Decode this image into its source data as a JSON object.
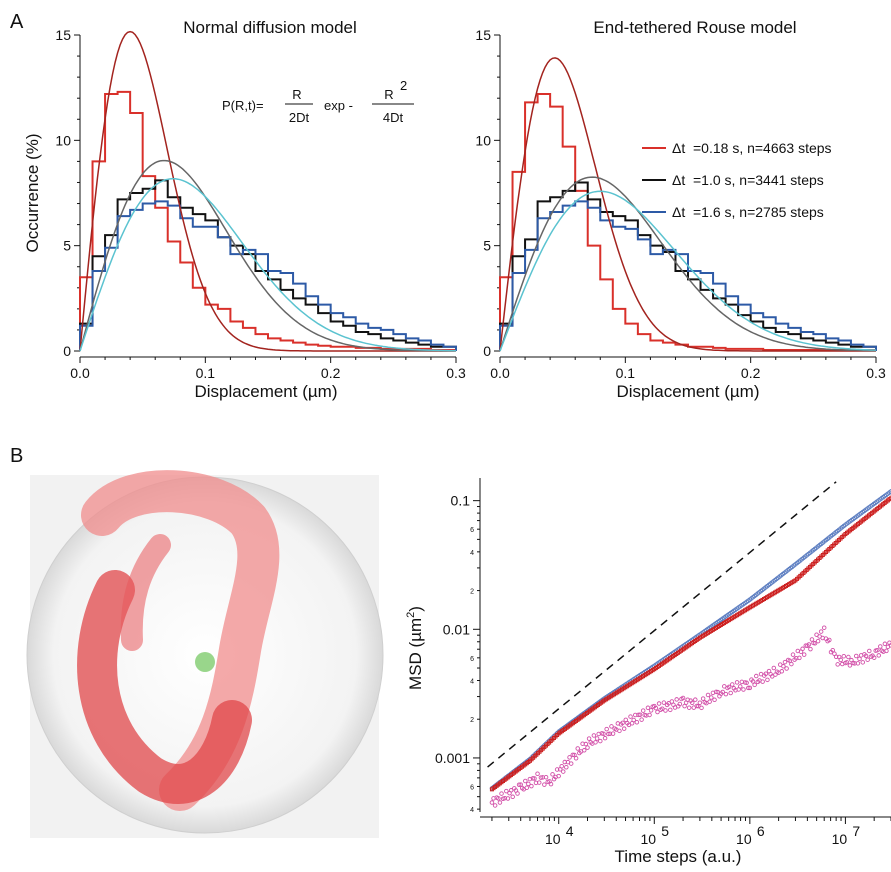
{
  "panel_labels": {
    "a": "A",
    "b": "B"
  },
  "formula": {
    "lhs": "P(R,t)=",
    "num1": "R",
    "den1": "2Dt",
    "exp": "exp -",
    "num2": "R",
    "sup": "2",
    "den2": "4Dt"
  },
  "legend": [
    {
      "symbol": "Δt",
      "text": "=0.18 s, n=4663 steps",
      "color": "#d9302a"
    },
    {
      "symbol": "Δt",
      "text": "=1.0 s,   n=3441 steps",
      "color": "#111111"
    },
    {
      "symbol": "Δt",
      "text": "=1.6 s,   n=2785 steps",
      "color": "#2d5aa6"
    }
  ],
  "chart_data": [
    {
      "type": "line",
      "title": "Normal diffusion model",
      "xlabel": "Displacement (µm)",
      "ylabel": "Occurrence (%)",
      "xlim": [
        0,
        0.3
      ],
      "ylim": [
        0,
        15
      ],
      "xticks": [
        "0.0",
        "0.1",
        "0.2",
        "0.3"
      ],
      "yticks": [
        "0",
        "5",
        "10",
        "15"
      ],
      "bin_width": 0.01,
      "histograms": [
        {
          "color": "#d9302a",
          "values": [
            3.5,
            9.0,
            12.2,
            12.3,
            11.3,
            8.3,
            6.8,
            5.2,
            4.2,
            3.0,
            2.2,
            2.0,
            1.4,
            1.1,
            0.8,
            0.6,
            0.5,
            0.4,
            0.3,
            0.25,
            0.2,
            0.2,
            0.15,
            0.15,
            0.1,
            0.1,
            0.1,
            0.1,
            0.05,
            0.05
          ]
        },
        {
          "color": "#111111",
          "values": [
            1.3,
            4.5,
            5.5,
            7.2,
            7.5,
            7.7,
            8.1,
            7.3,
            6.8,
            6.5,
            6.2,
            5.4,
            5.0,
            4.6,
            3.8,
            3.4,
            2.9,
            2.5,
            2.2,
            1.8,
            1.4,
            1.2,
            0.9,
            0.8,
            0.6,
            0.5,
            0.4,
            0.3,
            0.2,
            0.2
          ]
        },
        {
          "color": "#2d5aa6",
          "values": [
            1.2,
            3.8,
            4.9,
            6.4,
            6.7,
            7.0,
            7.1,
            6.9,
            6.3,
            5.9,
            5.9,
            5.4,
            4.6,
            4.8,
            4.6,
            3.8,
            3.7,
            3.2,
            2.6,
            2.2,
            1.8,
            1.6,
            1.3,
            1.1,
            1.0,
            0.8,
            0.6,
            0.5,
            0.3,
            0.2
          ]
        }
      ],
      "fits": [
        {
          "color": "#a3241f",
          "D": 0.0008
        },
        {
          "color": "#666666",
          "D": 0.00225
        },
        {
          "color": "#5bc3d0",
          "D": 0.00275
        }
      ]
    },
    {
      "type": "line",
      "title": "End-tethered Rouse model",
      "xlabel": "Displacement (µm)",
      "ylabel": "",
      "xlim": [
        0,
        0.3
      ],
      "ylim": [
        0,
        15
      ],
      "xticks": [
        "0.0",
        "0.1",
        "0.2",
        "0.3"
      ],
      "yticks": [
        "0",
        "5",
        "10",
        "15"
      ],
      "bin_width": 0.01,
      "histograms": [
        {
          "color": "#d9302a",
          "values": [
            3.5,
            8.5,
            11.8,
            12.2,
            11.6,
            9.7,
            7.6,
            5.0,
            3.4,
            2.0,
            1.3,
            0.8,
            0.5,
            0.4,
            0.3,
            0.2,
            0.2,
            0.15,
            0.1,
            0.1,
            0.1,
            0.05,
            0.05,
            0.05,
            0.05,
            0.05,
            0.05,
            0.05,
            0.05,
            0.05
          ]
        },
        {
          "color": "#111111",
          "values": [
            1.3,
            4.5,
            5.3,
            7.1,
            7.3,
            7.6,
            8.0,
            7.2,
            6.6,
            6.4,
            6.2,
            5.5,
            5.0,
            4.7,
            3.8,
            3.4,
            2.9,
            2.5,
            2.2,
            1.7,
            1.4,
            1.1,
            0.9,
            0.8,
            0.6,
            0.5,
            0.4,
            0.3,
            0.2,
            0.2
          ]
        },
        {
          "color": "#2d5aa6",
          "values": [
            1.2,
            3.7,
            4.8,
            6.3,
            6.6,
            6.9,
            7.1,
            6.8,
            6.2,
            5.9,
            5.8,
            5.3,
            4.6,
            4.8,
            4.6,
            3.8,
            3.7,
            3.2,
            2.6,
            2.2,
            1.8,
            1.6,
            1.3,
            1.1,
            0.9,
            0.8,
            0.6,
            0.5,
            0.3,
            0.2
          ]
        }
      ],
      "fits": [
        {
          "color": "#a3241f",
          "D": 0.00095
        },
        {
          "color": "#666666",
          "D": 0.0027
        },
        {
          "color": "#5bc3d0",
          "D": 0.0032
        }
      ]
    },
    {
      "type": "scatter",
      "xlabel": "Time steps (a.u.)",
      "ylabel": "MSD (µm²)",
      "xscale": "log",
      "yscale": "log",
      "xlim": [
        1500,
        30000000
      ],
      "ylim": [
        0.00038,
        0.15
      ],
      "xticks": [
        10000,
        100000,
        1000000,
        10000000
      ],
      "yticks": [
        "0.001",
        "0.01",
        "0.1"
      ],
      "reference_line": {
        "x": [
          1800,
          8000000
        ],
        "y": [
          0.00085,
          0.14
        ]
      },
      "series": [
        {
          "color": "#5a7cc0",
          "points": [
            [
              2000,
              0.00058
            ],
            [
              5000,
              0.00098
            ],
            [
              10000,
              0.0016
            ],
            [
              30000,
              0.0029
            ],
            [
              100000,
              0.0052
            ],
            [
              300000,
              0.0091
            ],
            [
              1000000,
              0.017
            ],
            [
              3000000,
              0.032
            ],
            [
              10000000,
              0.065
            ],
            [
              30000000,
              0.118
            ]
          ]
        },
        {
          "color": "#cc1f1f",
          "points": [
            [
              2000,
              0.00057
            ],
            [
              5000,
              0.00095
            ],
            [
              10000,
              0.00155
            ],
            [
              30000,
              0.0028
            ],
            [
              100000,
              0.0049
            ],
            [
              300000,
              0.0086
            ],
            [
              1000000,
              0.0148
            ],
            [
              3000000,
              0.024
            ],
            [
              10000000,
              0.055
            ],
            [
              30000000,
              0.105
            ]
          ]
        },
        {
          "color": "#d24fa8",
          "points": [
            [
              2000,
              0.00045
            ],
            [
              4000,
              0.00058
            ],
            [
              6000,
              0.0007
            ],
            [
              8000,
              0.00065
            ],
            [
              12000,
              0.0009
            ],
            [
              20000,
              0.0013
            ],
            [
              40000,
              0.0017
            ],
            [
              100000,
              0.0024
            ],
            [
              200000,
              0.0027
            ],
            [
              300000,
              0.0026
            ],
            [
              500000,
              0.0033
            ],
            [
              1000000,
              0.0038
            ],
            [
              2000000,
              0.0048
            ],
            [
              4000000,
              0.0072
            ],
            [
              6000000,
              0.0095
            ],
            [
              8000000,
              0.0058
            ],
            [
              12000000,
              0.0056
            ],
            [
              20000000,
              0.0065
            ],
            [
              30000000,
              0.0075
            ]
          ]
        }
      ]
    }
  ]
}
